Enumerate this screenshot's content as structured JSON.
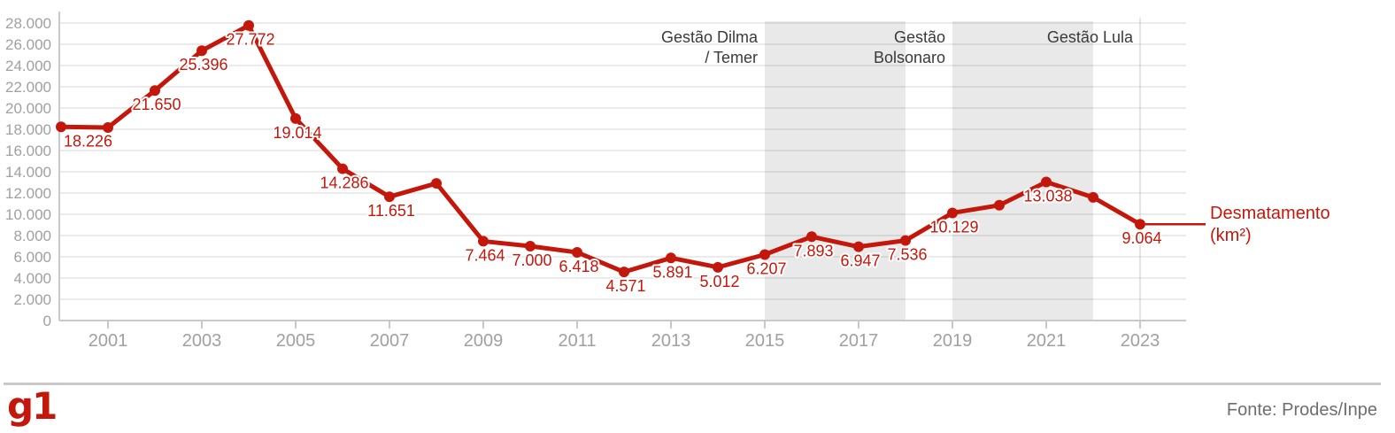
{
  "footer": {
    "logo_text": "g1",
    "source": "Fonte: Prodes/Inpe"
  },
  "colors": {
    "accent_red": "#c4170c",
    "term_band": "#e9e9e9",
    "gridline": "rgba(0,0,0,0.08)",
    "axis": "#c9c9c9",
    "tick_text": "#a0a0a0",
    "annotation_text": "#3a3a3a",
    "data_label_halo": "#ffffff",
    "source_text": "#6e6e6e"
  },
  "chart_data": {
    "type": "line",
    "series_name": "Desmatamento (km²)",
    "legend_lines": [
      "Desmatamento",
      "(km²)"
    ],
    "x": [
      2000,
      2001,
      2002,
      2003,
      2004,
      2005,
      2006,
      2007,
      2008,
      2009,
      2010,
      2011,
      2012,
      2013,
      2014,
      2015,
      2016,
      2017,
      2018,
      2019,
      2020,
      2021,
      2022,
      2023
    ],
    "values": [
      18226,
      18165,
      21650,
      25396,
      27772,
      19014,
      14286,
      11651,
      12911,
      7464,
      7000,
      6418,
      4571,
      5891,
      5012,
      6207,
      7893,
      6947,
      7536,
      10129,
      10851,
      13038,
      11594,
      9064
    ],
    "point_labels": [
      "18.226",
      "",
      "21.650",
      "25.396",
      "27.772",
      "19.014",
      "14.286",
      "11.651",
      "",
      "7.464",
      "7.000",
      "6.418",
      "4.571",
      "5.891",
      "5.012",
      "6.207",
      "7.893",
      "6.947",
      "7.536",
      "10.129",
      "",
      "13.038",
      "",
      "9.064"
    ],
    "x_tick_labels": [
      "2001",
      "2003",
      "2005",
      "2007",
      "2009",
      "2011",
      "2013",
      "2015",
      "2017",
      "2019",
      "2021",
      "2023"
    ],
    "x_tick_years": [
      2001,
      2003,
      2005,
      2007,
      2009,
      2011,
      2013,
      2015,
      2017,
      2019,
      2021,
      2023
    ],
    "y_tick_labels": [
      "0",
      "2.000",
      "4.000",
      "6.000",
      "8.000",
      "10.000",
      "12.000",
      "14.000",
      "16.000",
      "18.000",
      "20.000",
      "22.000",
      "24.000",
      "26.000",
      "28.000"
    ],
    "y_tick_values": [
      0,
      2000,
      4000,
      6000,
      8000,
      10000,
      12000,
      14000,
      16000,
      18000,
      20000,
      22000,
      24000,
      26000,
      28000
    ],
    "ylim": [
      0,
      28000
    ],
    "xlim": [
      2000,
      2024
    ],
    "grid": "horizontal",
    "vertical_gridline_year": 2023,
    "annotations": [
      {
        "id": "dilma-temer",
        "label_lines": [
          "Gestão Dilma",
          "/ Temer"
        ],
        "start_year": 2015,
        "end_year": 2018,
        "shaded": true
      },
      {
        "id": "bolsonaro",
        "label_lines": [
          "Gestão",
          "Bolsonaro"
        ],
        "start_year": 2019,
        "end_year": 2022,
        "shaded": true
      },
      {
        "id": "lula",
        "label_lines": [
          "Gestão Lula"
        ],
        "start_year": 2023,
        "end_year": null,
        "shaded": false
      }
    ]
  }
}
